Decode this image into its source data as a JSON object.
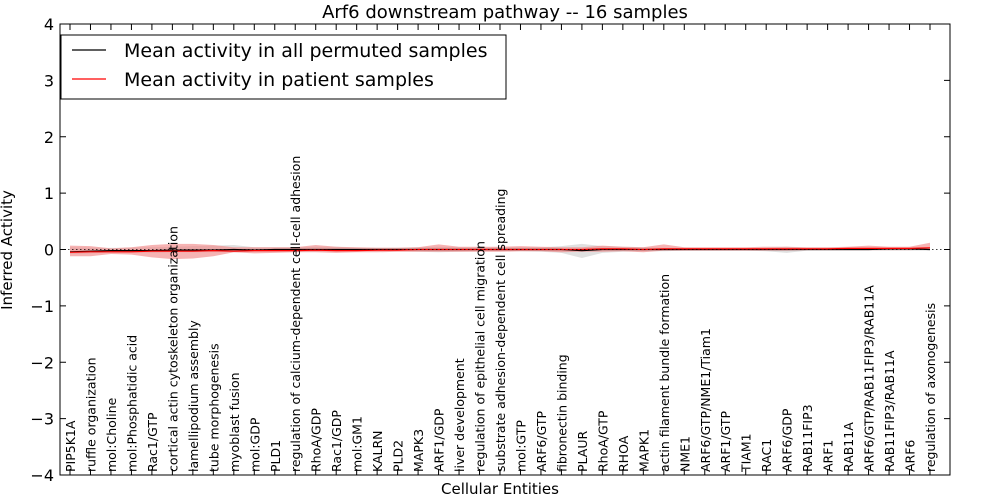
{
  "chart_data": {
    "type": "line",
    "title": "Arf6 downstream pathway -- 16 samples",
    "xlabel": "Cellular Entities",
    "ylabel": "Inferred Activity",
    "ylim": [
      -4,
      4
    ],
    "yticks": [
      -4,
      -3,
      -2,
      -1,
      0,
      1,
      2,
      3,
      4
    ],
    "ytick_labels": [
      "−4",
      "−3",
      "−2",
      "−1",
      "0",
      "1",
      "2",
      "3",
      "4"
    ],
    "grid": false,
    "legend_position": "top-left",
    "categories": [
      "PIP5K1A",
      "ruffle organization",
      "mol:Choline",
      "mol:Phosphatidic acid",
      "Rac1/GTP",
      "cortical actin cytoskeleton organization",
      "lamellipodium assembly",
      "tube morphogenesis",
      "myoblast fusion",
      "mol:GDP",
      "PLD1",
      "regulation of calcium-dependent cell-cell adhesion",
      "RhoA/GDP",
      "Rac1/GDP",
      "mol:GM1",
      "KALRN",
      "PLD2",
      "MAPK3",
      "ARF1/GDP",
      "liver development",
      "regulation of epithelial cell migration",
      "substrate adhesion-dependent cell spreading",
      "mol:GTP",
      "ARF6/GTP",
      "fibronectin binding",
      "PLAUR",
      "RhoA/GTP",
      "RHOA",
      "MAPK1",
      "actin filament bundle formation",
      "NME1",
      "ARF6/GTP/NME1/Tiam1",
      "ARF1/GTP",
      "TIAM1",
      "RAC1",
      "ARF6/GDP",
      "RAB11FIP3",
      "ARF1",
      "RAB11A",
      "ARF6/GTP/RAB11FIP3/RAB11A",
      "RAB11FIP3/RAB11A",
      "ARF6",
      "regulation of axonogenesis"
    ],
    "series": [
      {
        "name": "Mean activity in all permuted samples",
        "color": "#000000",
        "band_color": "#bbbbbb",
        "values": [
          -0.04,
          -0.03,
          -0.02,
          -0.02,
          -0.02,
          -0.01,
          -0.01,
          -0.01,
          0.0,
          -0.01,
          0.0,
          0.0,
          0.0,
          0.0,
          0.0,
          0.0,
          0.0,
          0.0,
          0.0,
          0.0,
          0.0,
          0.0,
          0.0,
          0.0,
          0.0,
          -0.02,
          0.0,
          0.0,
          0.0,
          0.0,
          0.0,
          0.0,
          0.0,
          0.0,
          0.0,
          0.0,
          0.0,
          0.0,
          0.0,
          0.0,
          0.01,
          0.01,
          0.0
        ],
        "band_low": [
          -0.08,
          -0.07,
          -0.05,
          -0.05,
          -0.06,
          -0.05,
          -0.05,
          -0.05,
          -0.05,
          -0.04,
          -0.04,
          -0.04,
          -0.04,
          -0.04,
          -0.03,
          -0.03,
          -0.03,
          -0.04,
          -0.05,
          -0.04,
          -0.03,
          -0.03,
          -0.03,
          -0.04,
          -0.06,
          -0.15,
          -0.06,
          -0.04,
          -0.03,
          -0.03,
          -0.02,
          -0.02,
          -0.02,
          -0.02,
          -0.03,
          -0.06,
          -0.02,
          -0.02,
          -0.02,
          -0.02,
          -0.02,
          -0.02,
          -0.02
        ],
        "band_high": [
          0.04,
          0.03,
          0.03,
          0.03,
          0.04,
          0.05,
          0.06,
          0.07,
          0.08,
          0.04,
          0.04,
          0.04,
          0.05,
          0.05,
          0.03,
          0.03,
          0.03,
          0.04,
          0.05,
          0.04,
          0.03,
          0.04,
          0.04,
          0.04,
          0.06,
          0.1,
          0.06,
          0.05,
          0.04,
          0.03,
          0.03,
          0.02,
          0.02,
          0.02,
          0.03,
          0.05,
          0.03,
          0.03,
          0.03,
          0.02,
          0.02,
          0.02,
          0.02
        ]
      },
      {
        "name": "Mean activity in patient samples",
        "color": "#ff0000",
        "band_color": "#f08080",
        "values": [
          -0.05,
          -0.04,
          -0.04,
          -0.04,
          -0.03,
          -0.03,
          -0.03,
          -0.02,
          -0.03,
          -0.02,
          -0.02,
          -0.02,
          -0.01,
          -0.02,
          -0.02,
          -0.01,
          -0.01,
          0.0,
          0.0,
          0.0,
          0.0,
          0.0,
          0.0,
          0.0,
          0.0,
          0.0,
          0.01,
          0.01,
          0.0,
          0.01,
          0.01,
          0.01,
          0.01,
          0.01,
          0.01,
          0.01,
          0.01,
          0.01,
          0.02,
          0.02,
          0.02,
          0.02,
          0.03
        ],
        "band_low": [
          -0.12,
          -0.12,
          -0.08,
          -0.09,
          -0.14,
          -0.17,
          -0.16,
          -0.12,
          -0.05,
          -0.07,
          -0.06,
          -0.05,
          -0.05,
          -0.06,
          -0.05,
          -0.05,
          -0.04,
          -0.04,
          -0.04,
          -0.04,
          -0.04,
          -0.04,
          -0.03,
          -0.03,
          -0.05,
          -0.04,
          -0.04,
          -0.03,
          -0.05,
          -0.02,
          -0.02,
          -0.02,
          -0.02,
          -0.02,
          -0.02,
          -0.02,
          -0.01,
          -0.01,
          -0.01,
          -0.01,
          -0.01,
          -0.01,
          0.0
        ],
        "band_high": [
          0.07,
          0.06,
          0.02,
          0.04,
          0.08,
          0.1,
          0.1,
          0.08,
          0.04,
          0.04,
          0.04,
          0.04,
          0.08,
          0.05,
          0.04,
          0.03,
          0.03,
          0.04,
          0.09,
          0.05,
          0.05,
          0.05,
          0.06,
          0.05,
          0.04,
          0.04,
          0.07,
          0.05,
          0.04,
          0.09,
          0.04,
          0.04,
          0.04,
          0.04,
          0.05,
          0.05,
          0.04,
          0.04,
          0.05,
          0.07,
          0.05,
          0.05,
          0.12
        ]
      }
    ]
  }
}
